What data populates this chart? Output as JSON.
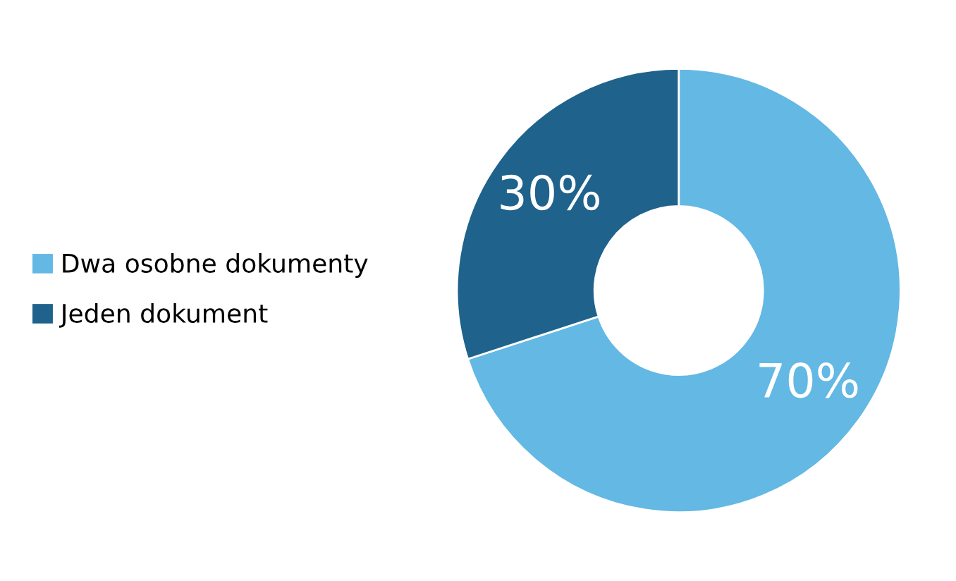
{
  "chart_data": {
    "type": "donut",
    "categories": [
      "Dwa osobne dokumenty",
      "Jeden dokument"
    ],
    "values": [
      70,
      30
    ],
    "colors": [
      "#63b8e4",
      "#1f628c"
    ],
    "value_labels": [
      "70%",
      "30%"
    ],
    "legend": "left"
  }
}
